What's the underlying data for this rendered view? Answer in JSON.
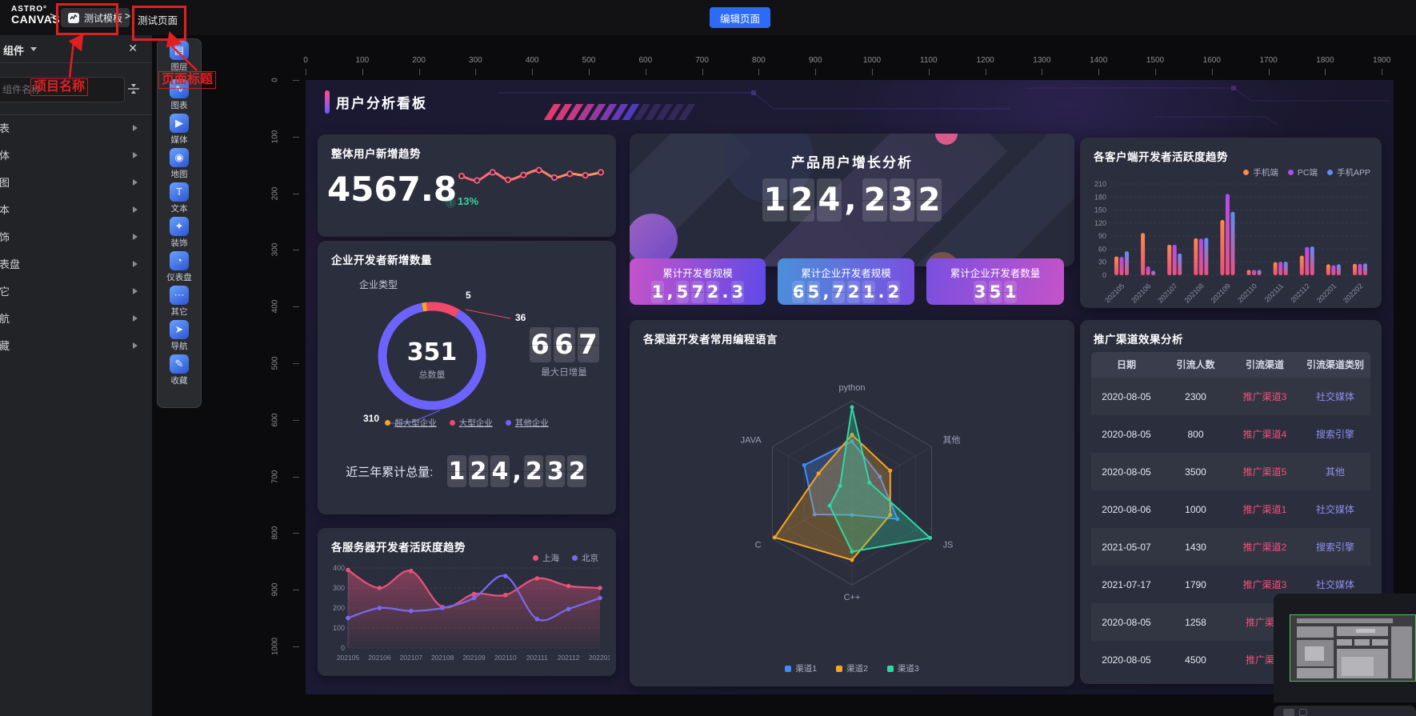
{
  "topbar": {
    "logo_line1": "ASTRO°",
    "logo_line2": "CANVAS",
    "separator": ">",
    "project_name": "测试模板",
    "page_name": "测试页面",
    "edit_button": "编辑页面"
  },
  "annotations": {
    "project_label": "项目名称",
    "page_label": "页面标题",
    "color": "#e21f1f"
  },
  "sidebar": {
    "title": "组件",
    "close_icon": "✕",
    "search_placeholder": "组件名称",
    "categories": [
      "图表",
      "媒体",
      "地图",
      "文本",
      "装饰",
      "仪表盘",
      "其它",
      "导航",
      "收藏"
    ]
  },
  "toolbar": {
    "items": [
      {
        "label": "图层",
        "icon": "layers-icon",
        "glyph": "▤"
      },
      {
        "label": "图表",
        "icon": "chart-icon",
        "glyph": "∿"
      },
      {
        "label": "媒体",
        "icon": "media-icon",
        "glyph": "▶"
      },
      {
        "label": "地图",
        "icon": "map-icon",
        "glyph": "◉"
      },
      {
        "label": "文本",
        "icon": "text-icon",
        "glyph": "T"
      },
      {
        "label": "装饰",
        "icon": "decoration-icon",
        "glyph": "✦"
      },
      {
        "label": "仪表盘",
        "icon": "gauge-icon",
        "glyph": "◔"
      },
      {
        "label": "其它",
        "icon": "other-icon",
        "glyph": "⋯"
      },
      {
        "label": "导航",
        "icon": "navigation-icon",
        "glyph": "➤"
      },
      {
        "label": "收藏",
        "icon": "favorite-icon",
        "glyph": "✎"
      }
    ]
  },
  "rulers": {
    "h_ticks": [
      "0",
      "100",
      "200",
      "300",
      "400",
      "500",
      "600",
      "700",
      "800",
      "900",
      "1000",
      "1100",
      "1200",
      "1300",
      "1400",
      "1500",
      "1600",
      "1700",
      "1800",
      "1900"
    ],
    "v_ticks": [
      "0",
      "100",
      "200",
      "300",
      "400",
      "500",
      "600",
      "700",
      "800",
      "900",
      "1000"
    ]
  },
  "dashboard": {
    "title": "用户分析看板",
    "panel_new_users": {
      "title": "整体用户新增趋势",
      "value": "4567.8",
      "delta": "13%"
    },
    "panel_enterprise": {
      "title": "企业开发者新增数量",
      "subtitle": "企业类型",
      "center_value": "351",
      "center_label": "总数量",
      "max_value": "667",
      "max_label": "最大日增量",
      "footer_label": "近三年累计总量:",
      "footer_value": "124,232"
    },
    "panel_server": {
      "title": "各服务器开发者活跃度趋势"
    },
    "panel_product": {
      "title": "产品用户增长分析",
      "value": "124, 232"
    },
    "stat_cards": [
      {
        "label": "累计开发者规模",
        "value": "1,572.3",
        "g1": "#c553c9",
        "g2": "#5f4ae8"
      },
      {
        "label": "累计企业开发者规模",
        "value": "65,721.2",
        "g1": "#4a90d9",
        "g2": "#7a4fe0"
      },
      {
        "label": "累计企业开发者数量",
        "value": "351",
        "g1": "#7a4fe0",
        "g2": "#c553c9"
      }
    ],
    "panel_radar": {
      "title": "各渠道开发者常用编程语言"
    },
    "panel_client": {
      "title": "各客户端开发者活跃度趋势"
    },
    "panel_table": {
      "title": "推广渠道效果分析"
    }
  },
  "chart_data": [
    {
      "id": "overall_trend",
      "type": "line",
      "title": "整体用户新增趋势",
      "values": [
        52,
        40,
        62,
        42,
        55,
        68,
        48,
        58,
        54,
        62
      ],
      "color1": "#ff5d7e",
      "color2": "#ff9a5a"
    },
    {
      "id": "enterprise_donut",
      "type": "pie",
      "title": "企业开发者新增数量",
      "slices": [
        {
          "name": "超大型企业",
          "value": 5,
          "color": "#f5a623"
        },
        {
          "name": "大型企业",
          "value": 36,
          "color": "#f1486b"
        },
        {
          "name": "其他企业",
          "value": 310,
          "color": "#6c63ff"
        }
      ],
      "total": 351
    },
    {
      "id": "server_activity",
      "type": "line",
      "title": "各服务器开发者活跃度趋势",
      "categories": [
        "202105",
        "202106",
        "202107",
        "202108",
        "202109",
        "202110",
        "202111",
        "202112",
        "202201"
      ],
      "series": [
        {
          "name": "上海",
          "color": "#e8537b",
          "values": [
            390,
            300,
            385,
            205,
            270,
            265,
            348,
            310,
            300
          ]
        },
        {
          "name": "北京",
          "color": "#7b68ee",
          "values": [
            150,
            200,
            185,
            200,
            250,
            360,
            145,
            195,
            250
          ]
        }
      ],
      "ylim": [
        0,
        400
      ],
      "yticks": [
        0,
        100,
        200,
        300,
        400
      ],
      "grid": "dashed",
      "legend_position": "top-right"
    },
    {
      "id": "product_counter",
      "type": "table",
      "title": "产品用户增长分析",
      "value": "124, 232"
    },
    {
      "id": "language_radar",
      "type": "radar",
      "title": "各渠道开发者常用编程语言",
      "axes": [
        "python",
        "其他",
        "JS",
        "C++",
        "C",
        "JAVA"
      ],
      "max": 100,
      "series": [
        {
          "name": "渠道1",
          "color": "#3f8cff",
          "values": [
            56,
            35,
            57,
            24,
            47,
            60
          ]
        },
        {
          "name": "渠道2",
          "color": "#f5a623",
          "values": [
            63,
            48,
            48,
            73,
            97,
            42
          ]
        },
        {
          "name": "渠道3",
          "color": "#2ed8a3",
          "values": [
            93,
            22,
            98,
            64,
            28,
            15
          ]
        }
      ],
      "legend_position": "bottom"
    },
    {
      "id": "client_activity",
      "type": "bar",
      "title": "各客户端开发者活跃度趋势",
      "categories": [
        "202105",
        "202106",
        "202107",
        "202108",
        "202109",
        "202110",
        "202111",
        "202112",
        "202201",
        "202202"
      ],
      "series": [
        {
          "name": "手机端",
          "color": "#ff8a47",
          "values": [
            43,
            97,
            70,
            85,
            127,
            12,
            30,
            45,
            25,
            26
          ]
        },
        {
          "name": "PC端",
          "color": "#b44bf0",
          "values": [
            42,
            20,
            70,
            84,
            187,
            12,
            31,
            65,
            23,
            26
          ]
        },
        {
          "name": "手机APP",
          "color": "#5b8ff9",
          "values": [
            55,
            10,
            50,
            86,
            146,
            12,
            31,
            66,
            25,
            27
          ]
        }
      ],
      "bar_base_color": "#ef4f7e",
      "ylim": [
        0,
        210
      ],
      "yticks": [
        0,
        30,
        60,
        90,
        120,
        150,
        180,
        210
      ],
      "grid": "dashed",
      "legend_position": "top-right"
    },
    {
      "id": "promotion_table",
      "type": "table",
      "title": "推广渠道效果分析",
      "columns": [
        "日期",
        "引流人数",
        "引流渠道",
        "引流渠道类别"
      ],
      "rows": [
        [
          "2020-08-05",
          "2300",
          "推广渠道3",
          "社交媒体"
        ],
        [
          "2020-08-05",
          "800",
          "推广渠道4",
          "搜索引擎"
        ],
        [
          "2020-08-05",
          "3500",
          "推广渠道5",
          "其他"
        ],
        [
          "2020-08-06",
          "1000",
          "推广渠道1",
          "社交媒体"
        ],
        [
          "2021-05-07",
          "1430",
          "推广渠道2",
          "搜索引擎"
        ],
        [
          "2021-07-17",
          "1790",
          "推广渠道3",
          "社交媒体"
        ],
        [
          "2020-08-05",
          "1258",
          "推广渠道",
          ""
        ],
        [
          "2020-08-05",
          "4500",
          "推广渠道",
          ""
        ]
      ]
    }
  ]
}
